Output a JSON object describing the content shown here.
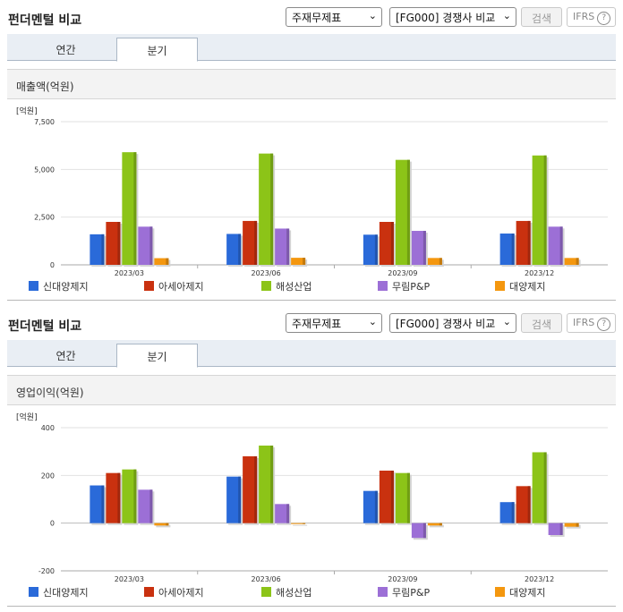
{
  "panels": [
    {
      "title": "펀더멘털 비교",
      "select1": "주재무제표",
      "select2": "[FG000] 경쟁사 비교",
      "search_label": "검색",
      "ifrs_label": "IFRS",
      "ifrs_help": "?",
      "tabs": [
        "연간",
        "분기"
      ],
      "active_tab": 1,
      "metric_label": "매출액(억원)",
      "unit_label": "[억원]"
    },
    {
      "title": "펀더멘털 비교",
      "select1": "주재무제표",
      "select2": "[FG000] 경쟁사 비교",
      "search_label": "검색",
      "ifrs_label": "IFRS",
      "ifrs_help": "?",
      "tabs": [
        "연간",
        "분기"
      ],
      "active_tab": 1,
      "metric_label": "영업이익(억원)",
      "unit_label": "[억원]"
    }
  ],
  "chart_data": [
    {
      "type": "bar",
      "title": "매출액(억원)",
      "ylabel": "[억원]",
      "categories": [
        "2023/03",
        "2023/06",
        "2023/09",
        "2023/12"
      ],
      "ylim": [
        0,
        7500
      ],
      "yticks": [
        0,
        2500,
        5000,
        7500
      ],
      "ytick_labels": [
        "0",
        "2,500",
        "5,000",
        "7,500"
      ],
      "grid": true,
      "legend": "bottom",
      "series": [
        {
          "name": "신대양제지",
          "color": "#2a6ad9",
          "values": [
            1600,
            1620,
            1580,
            1640
          ]
        },
        {
          "name": "아세아제지",
          "color": "#c9310f",
          "values": [
            2250,
            2300,
            2250,
            2300
          ]
        },
        {
          "name": "해성산업",
          "color": "#8cc418",
          "values": [
            5900,
            5830,
            5500,
            5730
          ]
        },
        {
          "name": "무림P&P",
          "color": "#9c6fd6",
          "values": [
            2000,
            1900,
            1780,
            2000
          ]
        },
        {
          "name": "대양제지",
          "color": "#f4970f",
          "values": [
            350,
            370,
            360,
            360
          ]
        }
      ]
    },
    {
      "type": "bar",
      "title": "영업이익(억원)",
      "ylabel": "[억원]",
      "categories": [
        "2023/03",
        "2023/06",
        "2023/09",
        "2023/12"
      ],
      "ylim": [
        -200,
        400
      ],
      "yticks": [
        -200,
        0,
        200,
        400
      ],
      "ytick_labels": [
        "-200",
        "0",
        "200",
        "400"
      ],
      "grid": true,
      "legend": "bottom",
      "series": [
        {
          "name": "신대양제지",
          "color": "#2a6ad9",
          "values": [
            158,
            195,
            135,
            88
          ]
        },
        {
          "name": "아세아제지",
          "color": "#c9310f",
          "values": [
            210,
            280,
            220,
            155
          ]
        },
        {
          "name": "해성산업",
          "color": "#8cc418",
          "values": [
            225,
            325,
            210,
            297
          ]
        },
        {
          "name": "무림P&P",
          "color": "#9c6fd6",
          "values": [
            140,
            80,
            -62,
            -50
          ]
        },
        {
          "name": "대양제지",
          "color": "#f4970f",
          "values": [
            -10,
            0,
            -10,
            -15
          ]
        }
      ]
    }
  ]
}
